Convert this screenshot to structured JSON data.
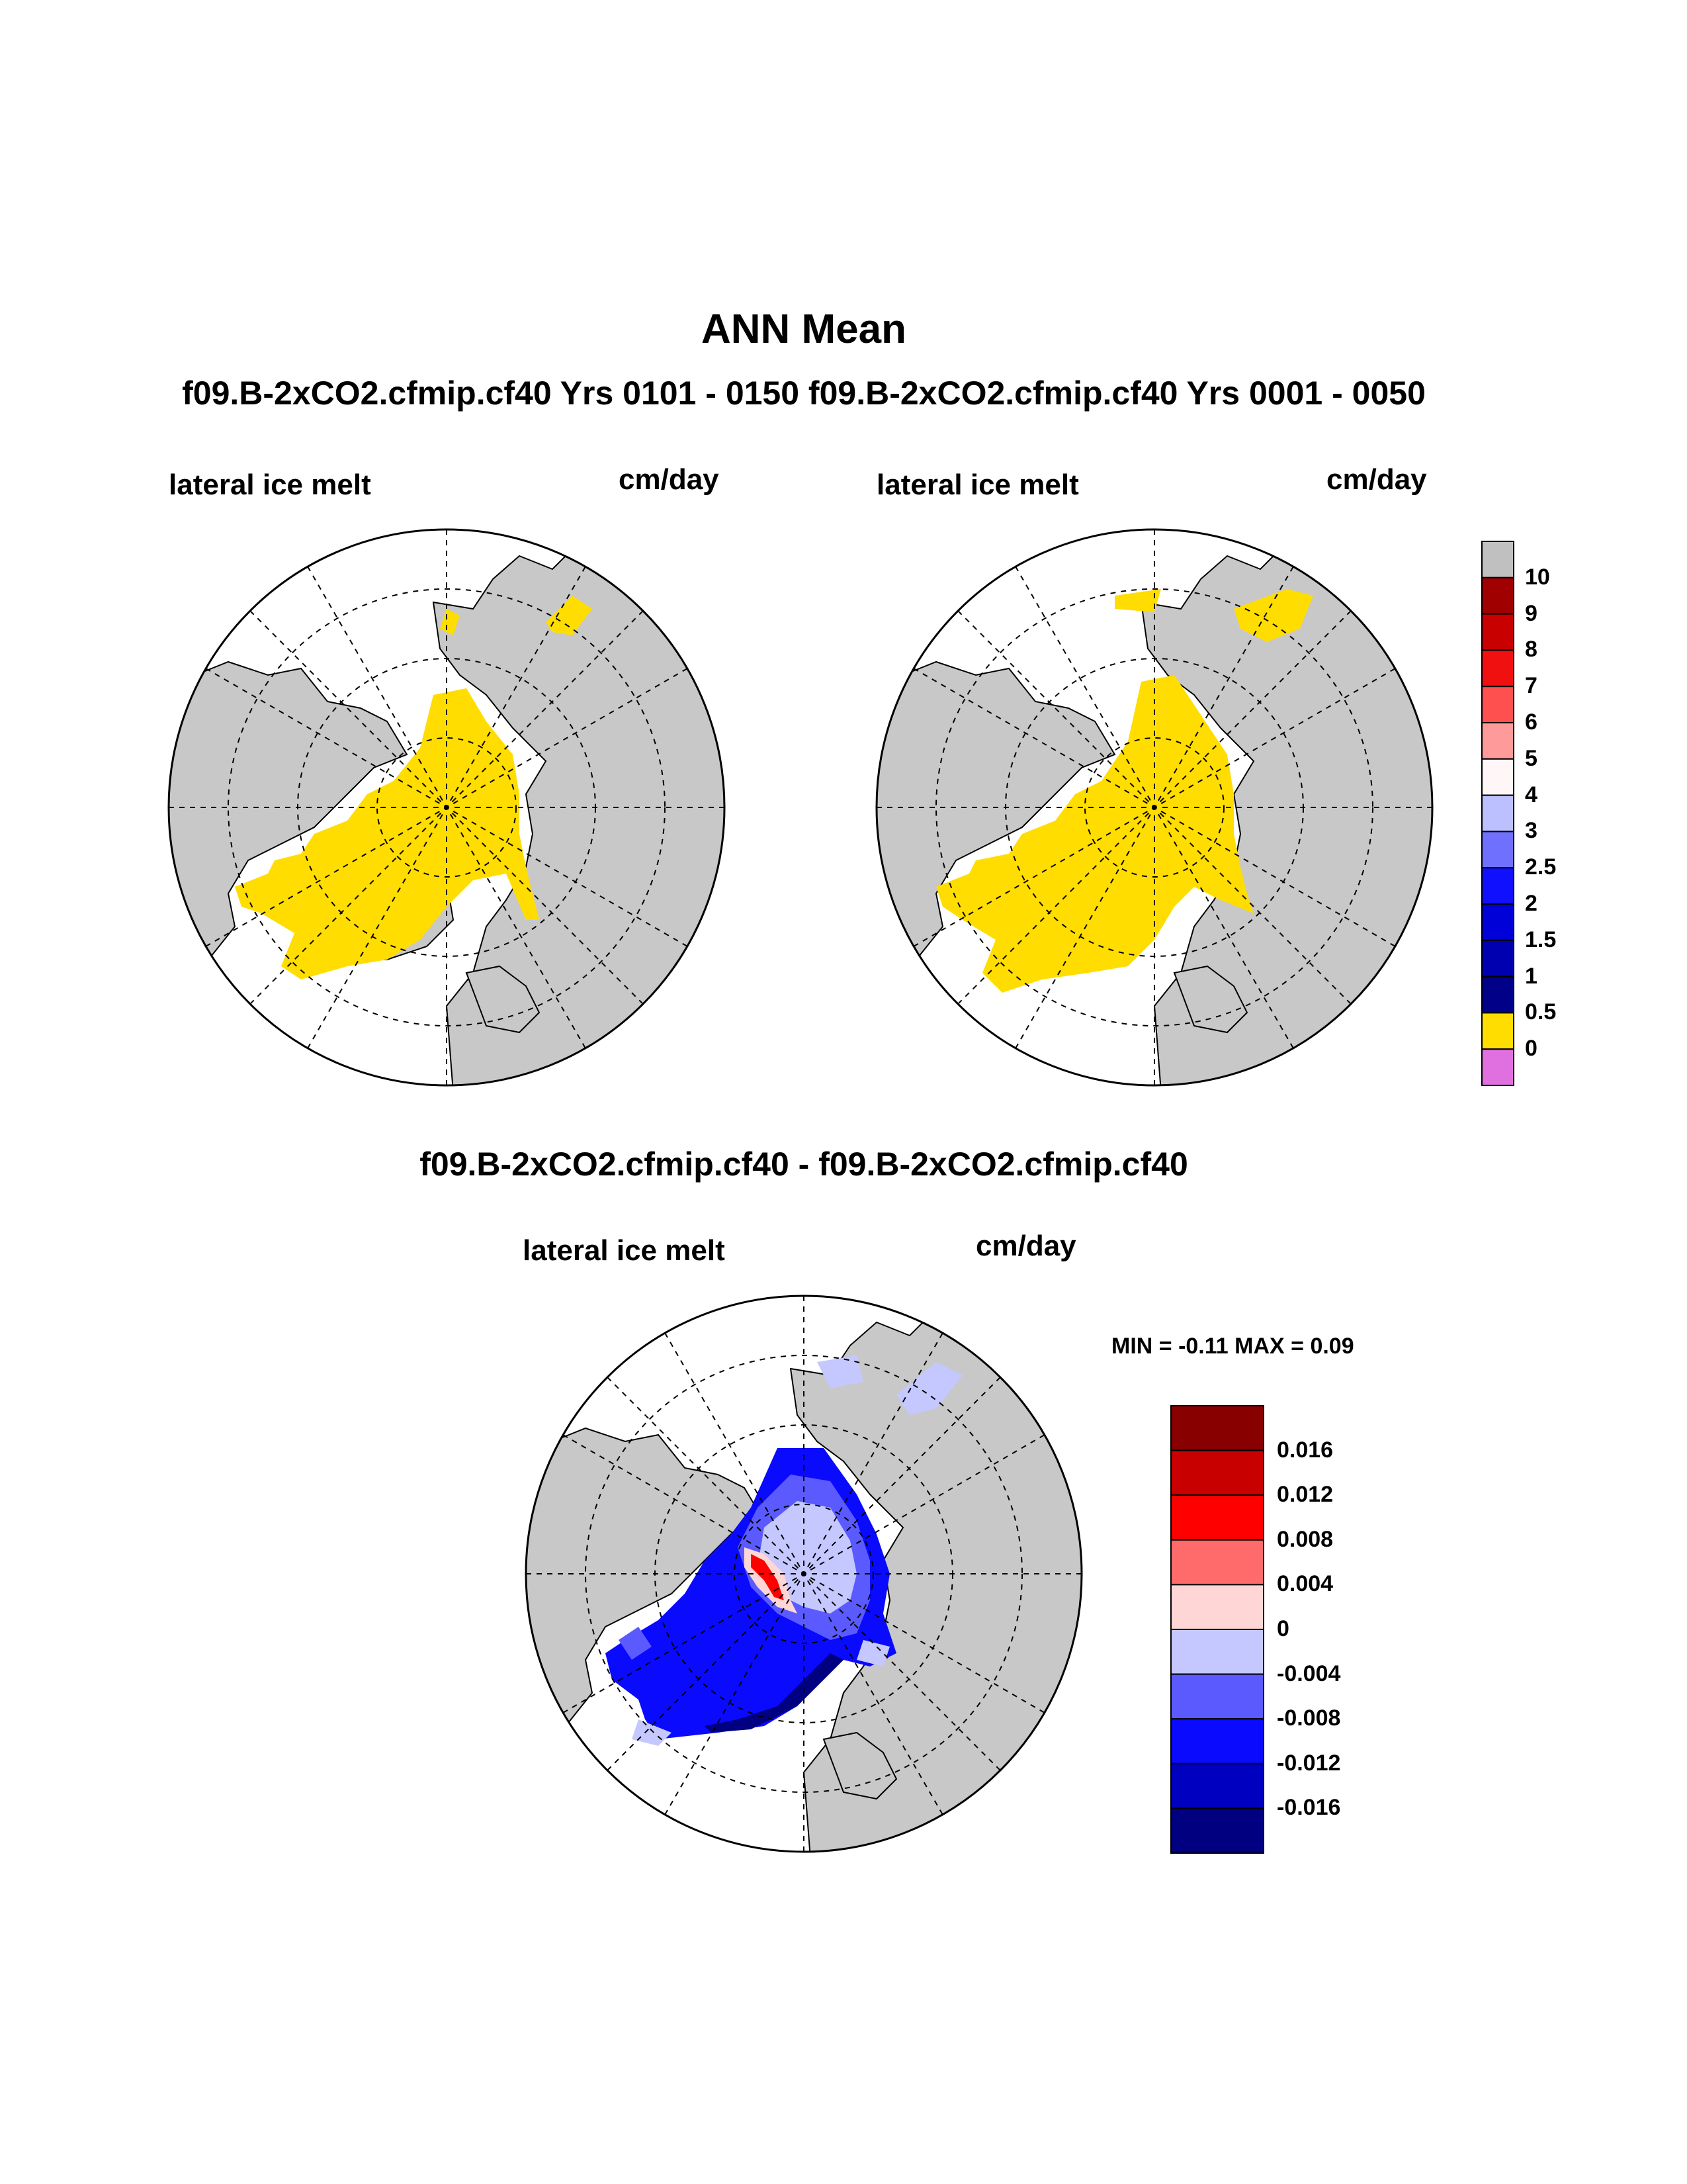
{
  "title": "ANN Mean",
  "subtitle": "f09.B-2xCO2.cfmip.cf40  Yrs 0101 - 0150 f09.B-2xCO2.cfmip.cf40  Yrs 0001 - 0050",
  "diff_title": "f09.B-2xCO2.cfmip.cf40 - f09.B-2xCO2.cfmip.cf40",
  "panels": [
    {
      "variable": "lateral ice melt",
      "units": "cm/day"
    },
    {
      "variable": "lateral ice melt",
      "units": "cm/day"
    },
    {
      "variable": "lateral ice melt",
      "units": "cm/day",
      "stats": "MIN =  -0.11 MAX =   0.09"
    }
  ],
  "colors": {
    "land": "#c8c8c8",
    "ocean": "#ffffff",
    "ice_melt_low": "#ffdd00"
  },
  "chart_data": [
    {
      "type": "heatmap",
      "projection": "north polar stereographic",
      "title": "f09.B-2xCO2.cfmip.cf40  Yrs 0101 - 0150",
      "variable": "lateral ice melt",
      "units": "cm/day",
      "colorbar": {
        "labels": [
          "10",
          "9",
          "8",
          "7",
          "6",
          "5",
          "4",
          "3",
          "2.5",
          "2",
          "1.5",
          "1",
          "0.5",
          "0"
        ],
        "colors": [
          "#c0c0c0",
          "#a00000",
          "#c80000",
          "#f01010",
          "#ff5050",
          "#ff9a9a",
          "#fff7f7",
          "#bcc0ff",
          "#7070ff",
          "#1010ff",
          "#0000d8",
          "#0000b0",
          "#000088",
          "#ffdd00",
          "#e070e0"
        ]
      }
    },
    {
      "type": "heatmap",
      "projection": "north polar stereographic",
      "title": "f09.B-2xCO2.cfmip.cf40  Yrs 0001 - 0050",
      "variable": "lateral ice melt",
      "units": "cm/day"
    },
    {
      "type": "heatmap",
      "projection": "north polar stereographic",
      "title": "f09.B-2xCO2.cfmip.cf40 - f09.B-2xCO2.cfmip.cf40",
      "variable": "lateral ice melt",
      "units": "cm/day",
      "min": -0.11,
      "max": 0.09,
      "colorbar": {
        "labels": [
          "0.016",
          "0.012",
          "0.008",
          "0.004",
          "0",
          "-0.004",
          "-0.008",
          "-0.012",
          "-0.016"
        ],
        "colors": [
          "#880000",
          "#c80000",
          "#ff0000",
          "#ff6a6a",
          "#ffd6d6",
          "#c4c8ff",
          "#5a5aff",
          "#0a0aff",
          "#0000c0",
          "#000080"
        ]
      }
    }
  ]
}
